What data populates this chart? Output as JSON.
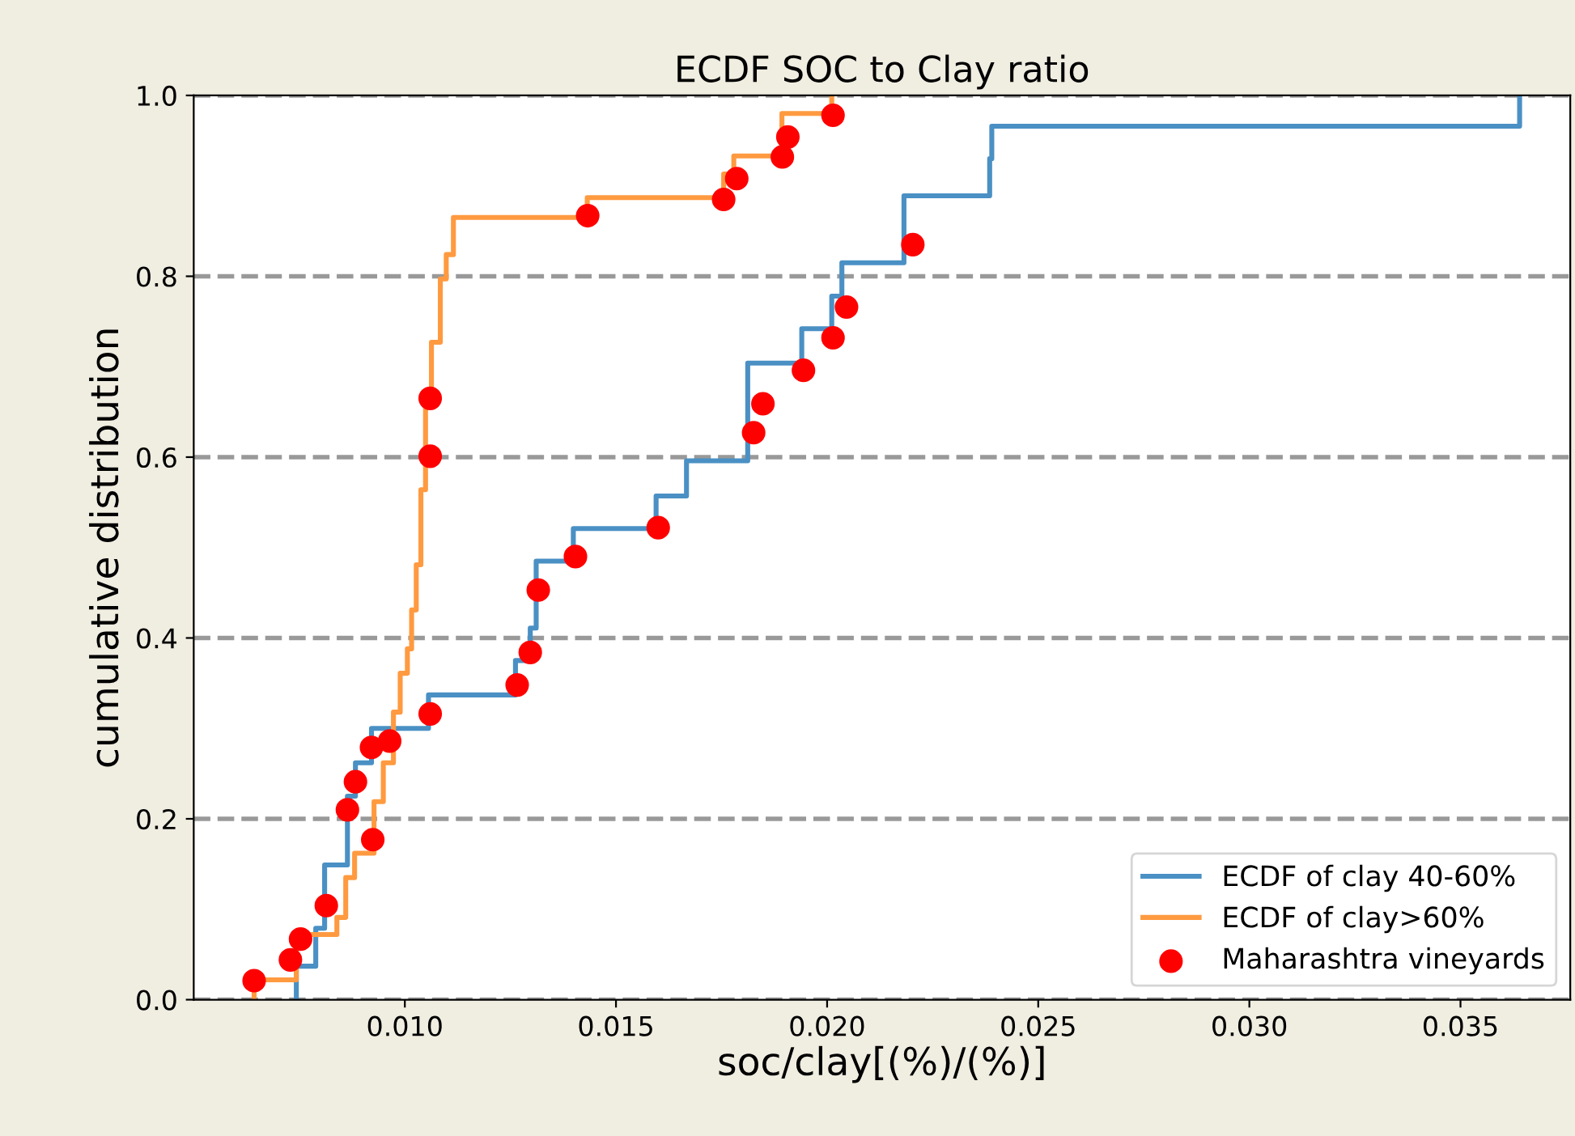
{
  "chart_data": {
    "type": "step",
    "title": "ECDF SOC to Clay ratio",
    "xlabel": "soc/clay[(%)/(%)]",
    "ylabel": "cumulative distribution",
    "xlim": [
      0.005,
      0.0376
    ],
    "xticks": [
      {
        "value": 0.01,
        "label": "0.010"
      },
      {
        "value": 0.015,
        "label": "0.015"
      },
      {
        "value": 0.02,
        "label": "0.020"
      },
      {
        "value": 0.025,
        "label": "0.025"
      },
      {
        "value": 0.03,
        "label": "0.030"
      },
      {
        "value": 0.035,
        "label": "0.035"
      }
    ],
    "ylim": [
      0,
      1
    ],
    "yticks": [
      {
        "value": 0,
        "label": "0.0"
      },
      {
        "value": 0.2,
        "label": "0.2"
      },
      {
        "value": 0.4,
        "label": "0.4"
      },
      {
        "value": 0.6,
        "label": "0.6"
      },
      {
        "value": 0.8,
        "label": "0.8"
      },
      {
        "value": 1,
        "label": "1.0"
      }
    ],
    "grid": "y",
    "legend": "bottom right",
    "series": [
      {
        "name": "ECDF of clay 40-60%",
        "color": "#4a90c4",
        "x": [
          0.00743,
          0.00743,
          0.00789,
          0.0081,
          0.00864,
          0.00883,
          0.00921,
          0.01056,
          0.01262,
          0.01297,
          0.01311,
          0.01399,
          0.01595,
          0.01667,
          0.01812,
          0.0194,
          0.02011,
          0.02035,
          0.02182,
          0.02385,
          0.0239,
          0.0364
        ],
        "values": [
          0,
          0.037,
          0.079,
          0.149,
          0.225,
          0.262,
          0.3,
          0.337,
          0.375,
          0.411,
          0.485,
          0.521,
          0.557,
          0.596,
          0.704,
          0.742,
          0.778,
          0.815,
          0.889,
          0.93,
          0.966,
          1.0
        ]
      },
      {
        "name": "ECDF of clay>60%",
        "color": "#ff9a40",
        "x": [
          0.00643,
          0.00643,
          0.00743,
          0.00839,
          0.0086,
          0.00881,
          0.00927,
          0.00949,
          0.00973,
          0.00989,
          0.01006,
          0.01016,
          0.01027,
          0.01038,
          0.01049,
          0.01063,
          0.01084,
          0.01098,
          0.01115,
          0.01432,
          0.01755,
          0.01779,
          0.01893,
          0.02011
        ],
        "values": [
          0,
          0.022,
          0.072,
          0.091,
          0.135,
          0.162,
          0.219,
          0.262,
          0.318,
          0.361,
          0.388,
          0.431,
          0.481,
          0.564,
          0.67,
          0.727,
          0.797,
          0.824,
          0.865,
          0.887,
          0.913,
          0.933,
          0.98,
          1.0
        ]
      },
      {
        "name": "Maharashtra vineyards",
        "type": "scatter",
        "color": "#ff0000",
        "marker": "circle",
        "x": [
          0.00643,
          0.00729,
          0.00753,
          0.00814,
          0.00924,
          0.00864,
          0.00883,
          0.00921,
          0.00964,
          0.0106,
          0.01266,
          0.01297,
          0.01316,
          0.01404,
          0.016,
          0.0106,
          0.0106,
          0.01433,
          0.01826,
          0.01848,
          0.01944,
          0.02014,
          0.02046,
          0.02203,
          0.01755,
          0.01786,
          0.01894,
          0.01907,
          0.02014
        ],
        "values": [
          0.021,
          0.044,
          0.067,
          0.104,
          0.177,
          0.21,
          0.241,
          0.279,
          0.286,
          0.316,
          0.348,
          0.384,
          0.453,
          0.49,
          0.522,
          0.601,
          0.665,
          0.867,
          0.627,
          0.659,
          0.696,
          0.732,
          0.766,
          0.835,
          0.885,
          0.908,
          0.932,
          0.954,
          0.978
        ]
      }
    ]
  }
}
